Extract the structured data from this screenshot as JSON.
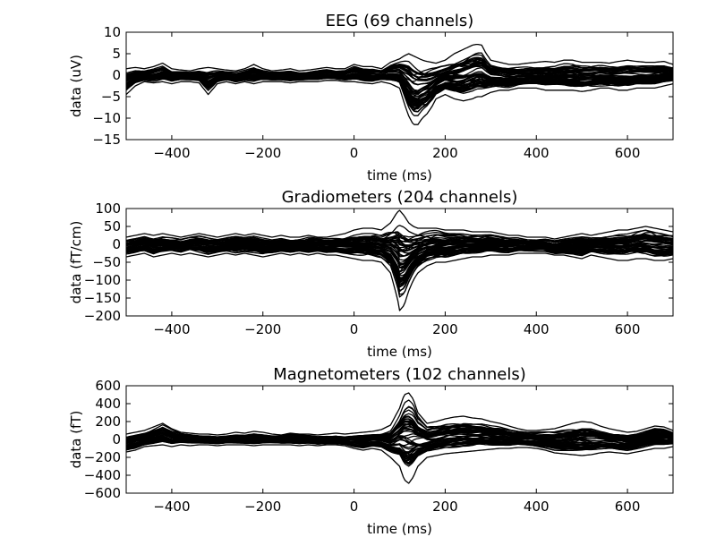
{
  "chart_data": [
    {
      "type": "line",
      "title": "EEG (69 channels)",
      "xlabel": "time (ms)",
      "ylabel": "data (uV)",
      "xlim": [
        -500,
        700
      ],
      "ylim": [
        -15,
        10
      ],
      "xticks": [
        -400,
        -200,
        0,
        200,
        400,
        600
      ],
      "xtick_labels": [
        "−400",
        "−200",
        "0",
        "200",
        "400",
        "600"
      ],
      "yticks": [
        10,
        5,
        0,
        -5,
        -10,
        -15
      ],
      "ytick_labels": [
        "10",
        "5",
        "0",
        "−5",
        "−10",
        "−15"
      ],
      "grid": false,
      "n_traces": 69,
      "envelope": {
        "x": [
          -500,
          -480,
          -460,
          -440,
          -420,
          -400,
          -380,
          -360,
          -340,
          -320,
          -300,
          -280,
          -260,
          -240,
          -220,
          -200,
          -180,
          -160,
          -140,
          -120,
          -100,
          -80,
          -60,
          -40,
          -20,
          0,
          20,
          40,
          60,
          80,
          100,
          110,
          120,
          130,
          140,
          150,
          160,
          170,
          180,
          200,
          220,
          240,
          260,
          270,
          280,
          290,
          300,
          320,
          340,
          360,
          380,
          400,
          420,
          440,
          460,
          480,
          500,
          520,
          540,
          560,
          580,
          600,
          620,
          640,
          660,
          680,
          700
        ],
        "upper": [
          1.5,
          1.8,
          1.5,
          2.0,
          2.8,
          1.5,
          1.2,
          1.0,
          1.5,
          1.8,
          1.5,
          1.2,
          1.0,
          1.5,
          2.5,
          1.5,
          1.0,
          1.2,
          1.5,
          1.0,
          1.2,
          1.5,
          1.8,
          1.5,
          1.5,
          2.5,
          2.0,
          2.0,
          1.5,
          3.0,
          3.8,
          4.5,
          5.0,
          4.5,
          4.0,
          3.5,
          3.2,
          3.0,
          2.8,
          3.5,
          5.0,
          6.0,
          7.0,
          7.2,
          7.0,
          5.0,
          3.5,
          3.0,
          2.5,
          2.5,
          2.8,
          3.0,
          3.2,
          3.0,
          3.5,
          3.5,
          3.0,
          3.0,
          3.0,
          2.8,
          3.2,
          3.5,
          3.2,
          3.0,
          3.0,
          3.2,
          2.5
        ],
        "lower": [
          -4.5,
          -2.5,
          -1.5,
          -1.8,
          -1.5,
          -2.0,
          -1.5,
          -1.5,
          -1.8,
          -4.5,
          -2.0,
          -1.5,
          -2.0,
          -1.5,
          -2.0,
          -1.5,
          -1.5,
          -1.5,
          -1.8,
          -1.5,
          -1.5,
          -1.5,
          -1.2,
          -1.2,
          -1.5,
          -1.5,
          -1.8,
          -2.0,
          -1.5,
          -2.0,
          -3.0,
          -6.5,
          -9.5,
          -11.5,
          -11.5,
          -10.0,
          -9.0,
          -7.5,
          -5.5,
          -4.5,
          -5.5,
          -6.0,
          -5.5,
          -5.0,
          -5.0,
          -4.5,
          -4.0,
          -3.5,
          -3.5,
          -3.0,
          -3.0,
          -3.0,
          -3.5,
          -3.5,
          -3.5,
          -3.5,
          -3.8,
          -3.5,
          -3.0,
          -3.0,
          -3.5,
          -3.5,
          -3.0,
          -3.0,
          -3.0,
          -2.5,
          -2.0
        ]
      }
    },
    {
      "type": "line",
      "title": "Gradiometers (204 channels)",
      "xlabel": "time (ms)",
      "ylabel": "data (fT/cm)",
      "xlim": [
        -500,
        700
      ],
      "ylim": [
        -200,
        100
      ],
      "xticks": [
        -400,
        -200,
        0,
        200,
        400,
        600
      ],
      "xtick_labels": [
        "−400",
        "−200",
        "0",
        "200",
        "400",
        "600"
      ],
      "yticks": [
        100,
        50,
        0,
        -50,
        -100,
        -150,
        -200
      ],
      "ytick_labels": [
        "100",
        "50",
        "0",
        "−50",
        "−100",
        "−150",
        "−200"
      ],
      "grid": false,
      "n_traces": 204,
      "envelope": {
        "x": [
          -500,
          -480,
          -460,
          -440,
          -420,
          -400,
          -380,
          -360,
          -340,
          -320,
          -300,
          -280,
          -260,
          -240,
          -220,
          -200,
          -180,
          -160,
          -140,
          -120,
          -100,
          -80,
          -60,
          -40,
          -20,
          0,
          20,
          40,
          60,
          80,
          95,
          100,
          110,
          120,
          130,
          140,
          160,
          180,
          200,
          220,
          240,
          260,
          280,
          300,
          320,
          340,
          360,
          380,
          400,
          420,
          440,
          460,
          480,
          500,
          520,
          540,
          560,
          580,
          600,
          620,
          640,
          660,
          680,
          700
        ],
        "upper": [
          20,
          25,
          30,
          25,
          30,
          25,
          20,
          25,
          30,
          25,
          20,
          25,
          30,
          25,
          30,
          25,
          20,
          25,
          20,
          20,
          25,
          20,
          20,
          25,
          30,
          40,
          45,
          45,
          40,
          60,
          90,
          95,
          80,
          60,
          50,
          45,
          45,
          45,
          40,
          40,
          40,
          35,
          35,
          35,
          30,
          25,
          25,
          20,
          20,
          20,
          15,
          20,
          25,
          30,
          25,
          30,
          35,
          40,
          40,
          45,
          50,
          45,
          40,
          35
        ],
        "upper_fill": [
          20,
          25,
          30,
          25,
          30,
          25,
          20,
          25,
          30,
          25,
          20,
          25,
          30,
          25,
          30,
          25,
          20,
          25,
          20,
          20,
          25,
          20,
          20,
          25,
          30,
          40,
          45,
          45,
          40,
          60,
          90,
          95,
          80,
          60,
          50,
          45,
          45,
          45,
          40,
          40,
          40,
          35,
          35,
          35,
          30,
          25,
          25,
          20,
          20,
          20,
          15,
          20,
          25,
          30,
          25,
          30,
          35,
          40,
          40,
          45,
          50,
          45,
          40,
          35
        ],
        "lower": [
          -35,
          -30,
          -25,
          -35,
          -30,
          -25,
          -30,
          -25,
          -30,
          -35,
          -30,
          -25,
          -30,
          -25,
          -30,
          -35,
          -30,
          -25,
          -30,
          -25,
          -30,
          -25,
          -30,
          -30,
          -35,
          -40,
          -45,
          -45,
          -50,
          -80,
          -150,
          -185,
          -170,
          -130,
          -100,
          -80,
          -60,
          -50,
          -50,
          -45,
          -40,
          -35,
          -35,
          -30,
          -30,
          -30,
          -25,
          -25,
          -25,
          -25,
          -30,
          -30,
          -35,
          -40,
          -30,
          -35,
          -40,
          -45,
          -45,
          -40,
          -40,
          -45,
          -45,
          -40
        ]
      }
    },
    {
      "type": "line",
      "title": "Magnetometers (102 channels)",
      "xlabel": "time (ms)",
      "ylabel": "data (fT)",
      "xlim": [
        -500,
        700
      ],
      "ylim": [
        -600,
        600
      ],
      "xticks": [
        -400,
        -200,
        0,
        200,
        400,
        600
      ],
      "xtick_labels": [
        "−400",
        "−200",
        "0",
        "200",
        "400",
        "600"
      ],
      "yticks": [
        600,
        400,
        200,
        0,
        -200,
        -400,
        -600
      ],
      "ytick_labels": [
        "600",
        "400",
        "200",
        "0",
        "−200",
        "−400",
        "−600"
      ],
      "grid": false,
      "n_traces": 102,
      "envelope": {
        "x": [
          -500,
          -480,
          -460,
          -440,
          -420,
          -400,
          -380,
          -360,
          -340,
          -320,
          -300,
          -280,
          -260,
          -240,
          -220,
          -200,
          -180,
          -160,
          -140,
          -120,
          -100,
          -80,
          -60,
          -40,
          -20,
          0,
          20,
          40,
          60,
          80,
          100,
          110,
          120,
          130,
          140,
          160,
          180,
          200,
          220,
          240,
          260,
          280,
          300,
          320,
          340,
          360,
          380,
          400,
          420,
          440,
          460,
          480,
          500,
          520,
          540,
          560,
          580,
          600,
          620,
          640,
          660,
          680,
          700
        ],
        "upper": [
          60,
          80,
          100,
          140,
          180,
          120,
          80,
          70,
          60,
          60,
          50,
          60,
          80,
          70,
          90,
          80,
          60,
          50,
          70,
          60,
          60,
          50,
          60,
          70,
          60,
          70,
          80,
          90,
          110,
          160,
          350,
          500,
          520,
          450,
          300,
          180,
          200,
          230,
          250,
          260,
          240,
          230,
          200,
          180,
          150,
          120,
          100,
          100,
          110,
          120,
          150,
          180,
          200,
          190,
          150,
          120,
          100,
          80,
          90,
          120,
          150,
          140,
          100
        ],
        "lower": [
          -140,
          -120,
          -80,
          -70,
          -60,
          -80,
          -60,
          -70,
          -60,
          -60,
          -70,
          -60,
          -60,
          -60,
          -70,
          -60,
          -60,
          -60,
          -60,
          -70,
          -60,
          -70,
          -60,
          -60,
          -70,
          -100,
          -120,
          -100,
          -120,
          -200,
          -300,
          -450,
          -490,
          -420,
          -300,
          -200,
          -180,
          -160,
          -150,
          -140,
          -130,
          -120,
          -110,
          -100,
          -100,
          -90,
          -90,
          -100,
          -120,
          -150,
          -160,
          -170,
          -180,
          -170,
          -150,
          -140,
          -150,
          -160,
          -140,
          -120,
          -100,
          -100,
          -80
        ]
      }
    }
  ]
}
